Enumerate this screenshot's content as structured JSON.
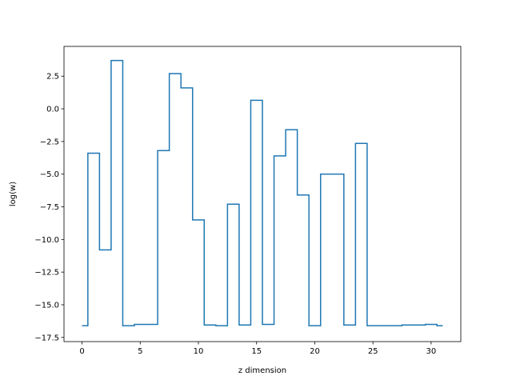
{
  "chart_data": {
    "type": "line",
    "drawstyle": "steps-mid",
    "title": "",
    "xlabel": "z dimension",
    "ylabel": "log(w)",
    "xlim": [
      -1.55,
      32.55
    ],
    "ylim": [
      -17.82,
      4.78
    ],
    "xticks": [
      0,
      5,
      10,
      15,
      20,
      25,
      30
    ],
    "yticks": [
      -17.5,
      -15.0,
      -12.5,
      -10.0,
      -7.5,
      -5.0,
      -2.5,
      0.0,
      2.5
    ],
    "ytick_labels": [
      "−17.5",
      "−15.0",
      "−12.5",
      "−10.0",
      "−7.5",
      "−5.0",
      "−2.5",
      "0.0",
      "2.5"
    ],
    "grid": false,
    "series": [
      {
        "color": "#1f77b4",
        "x": [
          0,
          1,
          2,
          3,
          4,
          5,
          6,
          7,
          8,
          9,
          10,
          11,
          12,
          13,
          14,
          15,
          16,
          17,
          18,
          19,
          20,
          21,
          22,
          23,
          24,
          25,
          26,
          27,
          28,
          29,
          30,
          31
        ],
        "y": [
          -16.6,
          -3.4,
          -10.8,
          3.7,
          -16.6,
          -16.5,
          -16.5,
          -3.2,
          2.7,
          1.6,
          -8.5,
          -16.55,
          -16.6,
          -7.3,
          -16.55,
          0.65,
          -16.5,
          -3.6,
          -1.6,
          -6.6,
          -16.6,
          -5.0,
          -5.0,
          -16.55,
          -2.65,
          -16.6,
          -16.6,
          -16.6,
          -16.55,
          -16.55,
          -16.5,
          -16.6
        ]
      }
    ]
  }
}
